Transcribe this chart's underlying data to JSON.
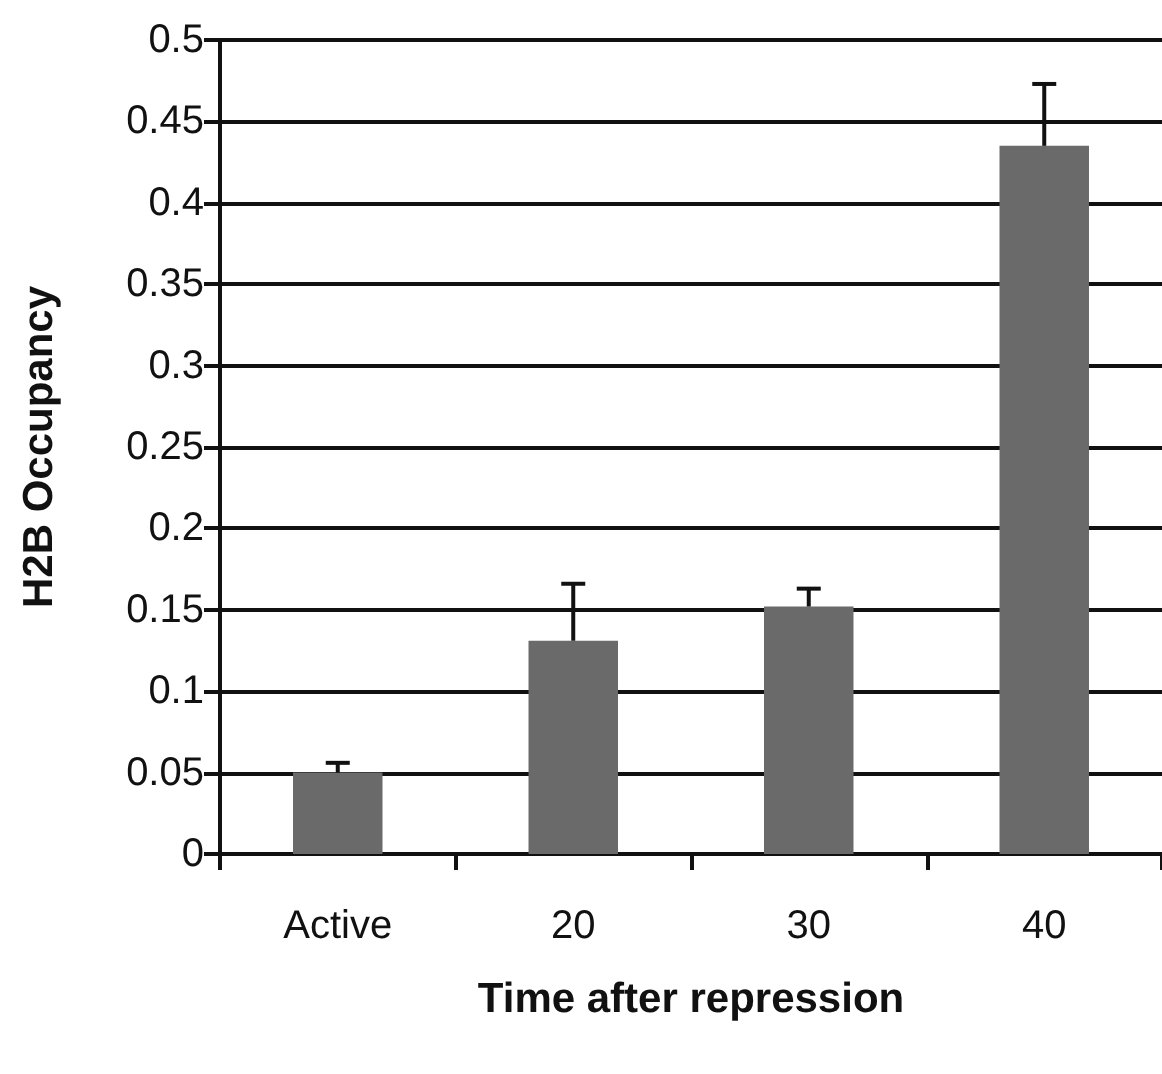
{
  "chart_data": {
    "type": "bar",
    "xlabel": "Time after repression",
    "ylabel": "H2B Occupancy",
    "categories": [
      "Active",
      "20",
      "30",
      "40"
    ],
    "values": [
      0.05,
      0.131,
      0.152,
      0.435
    ],
    "errors": [
      0.006,
      0.035,
      0.011,
      0.038
    ],
    "color": "#6a6a6a",
    "ylim": [
      0,
      0.5
    ],
    "yticks": [
      0,
      0.05,
      0.1,
      0.15,
      0.2,
      0.25,
      0.3,
      0.35,
      0.4,
      0.45,
      0.5
    ],
    "grid": "y"
  }
}
